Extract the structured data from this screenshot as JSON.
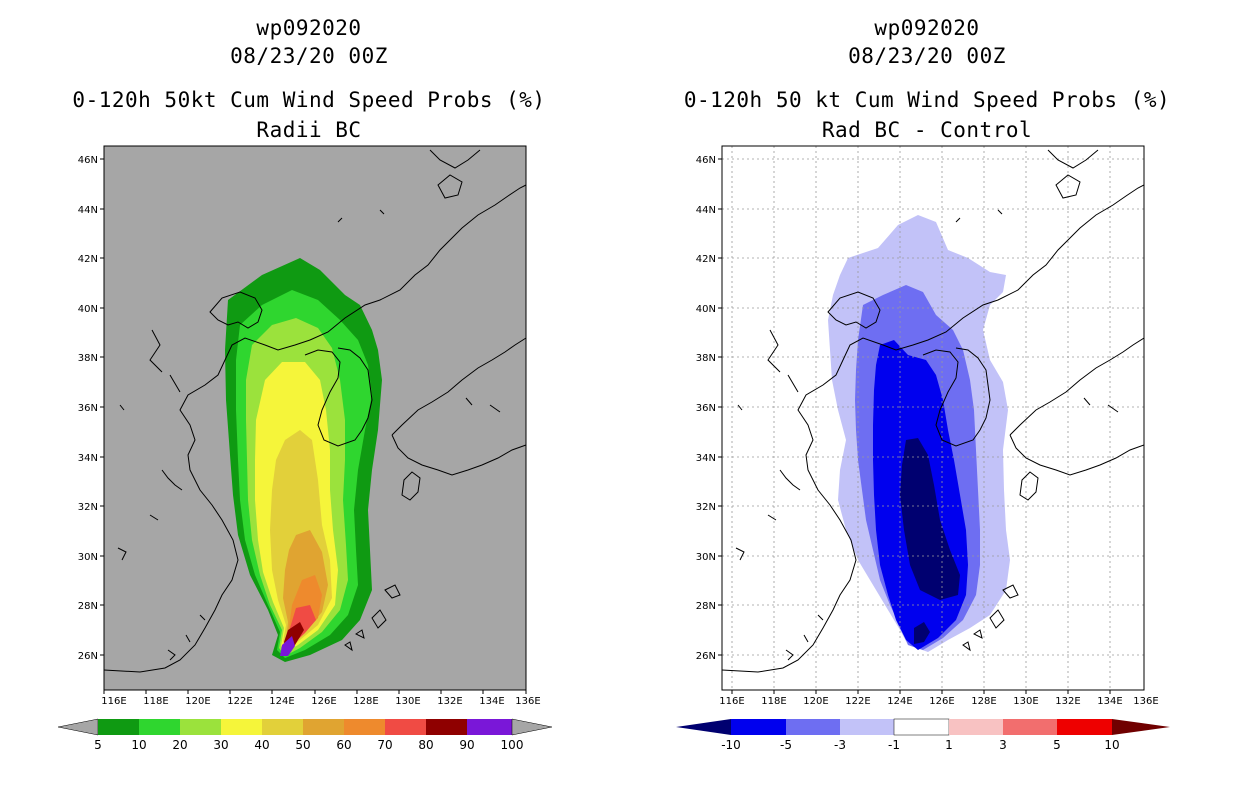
{
  "left": {
    "title_lines": [
      "wp092020",
      "08/23/20 00Z",
      "0-120h 50kt Cum Wind Speed Probs (%)",
      "Radii BC"
    ],
    "background": "#a6a6a6",
    "x_ticks": [
      "116E",
      "118E",
      "120E",
      "122E",
      "124E",
      "126E",
      "128E",
      "130E",
      "132E",
      "134E",
      "136E"
    ],
    "y_ticks": [
      "26N",
      "28N",
      "30N",
      "32N",
      "34N",
      "36N",
      "38N",
      "40N",
      "42N",
      "44N",
      "46N"
    ],
    "colorbar": {
      "labels": [
        "5",
        "10",
        "20",
        "30",
        "40",
        "50",
        "60",
        "70",
        "80",
        "90",
        "100"
      ],
      "colors": [
        "#0f9a12",
        "#2fd62f",
        "#9be23c",
        "#f5f53a",
        "#e2d03a",
        "#e0a431",
        "#ee8a2d",
        "#f04b44",
        "#8f0000",
        "#7a17d8"
      ],
      "under_color": "#a6a6a6",
      "over_color": "#a6a6a6"
    }
  },
  "right": {
    "title_lines": [
      "wp092020",
      "08/23/20 00Z",
      "0-120h 50 kt Cum Wind Speed Probs (%)",
      "Rad BC - Control"
    ],
    "background": "#ffffff",
    "x_ticks": [
      "116E",
      "118E",
      "120E",
      "122E",
      "124E",
      "126E",
      "128E",
      "130E",
      "132E",
      "134E",
      "136E"
    ],
    "y_ticks": [
      "26N",
      "28N",
      "30N",
      "32N",
      "34N",
      "36N",
      "38N",
      "40N",
      "42N",
      "44N",
      "46N"
    ],
    "colorbar": {
      "labels": [
        "-10",
        "-5",
        "-3",
        "-1",
        "1",
        "3",
        "5",
        "10"
      ],
      "colors": [
        "#0000ee",
        "#6e6ef2",
        "#c2c2f8",
        "#ffffff",
        "#f8c2c2",
        "#f26e6e",
        "#ee0000"
      ],
      "under_color": "#000070",
      "over_color": "#700000"
    }
  }
}
